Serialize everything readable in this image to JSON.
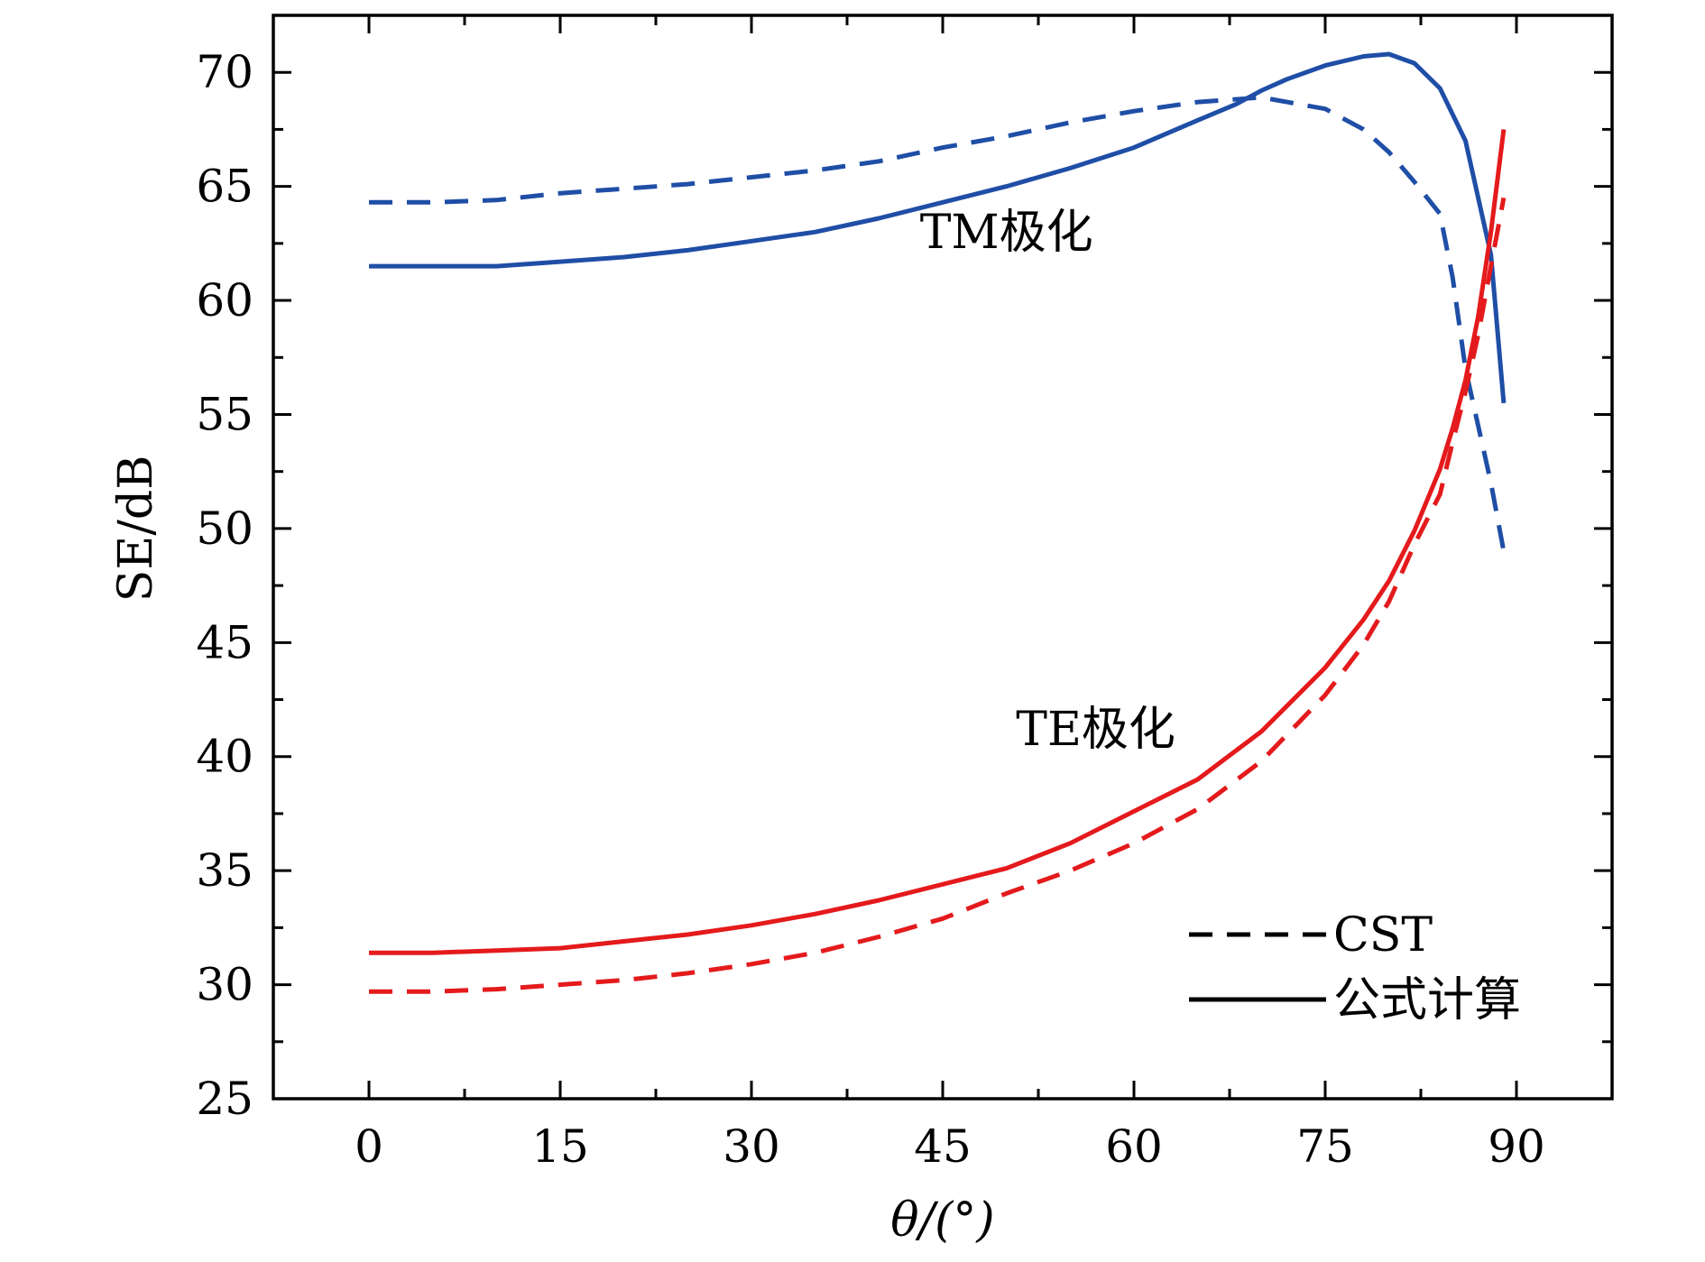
{
  "chart_data": {
    "type": "line",
    "xlabel": "θ/(°)",
    "ylabel": "SE/dB",
    "xlim": [
      -7.5,
      97.5
    ],
    "ylim": [
      25,
      72.5
    ],
    "xticks": [
      0,
      15,
      30,
      45,
      60,
      75,
      90
    ],
    "yticks": [
      25,
      30,
      35,
      40,
      45,
      50,
      55,
      60,
      65,
      70
    ],
    "x_minor_step": 7.5,
    "y_minor_step": 2.5,
    "grid": false,
    "legend": {
      "position": "bottom-right",
      "items": [
        {
          "label": "CST",
          "style": "dashed"
        },
        {
          "label": "公式计算",
          "style": "solid"
        }
      ]
    },
    "annotations": [
      {
        "text": "TM极化",
        "x": 50,
        "y": 62.3,
        "color": "#000000"
      },
      {
        "text": "TE极化",
        "x": 57,
        "y": 40.5,
        "color": "#000000"
      }
    ],
    "colors": {
      "tm": "#1f4ea6",
      "te": "#e41a1c"
    },
    "series": [
      {
        "style": "solid",
        "color": "#1f4ea6",
        "group": "TM",
        "x": [
          0,
          5,
          10,
          15,
          20,
          25,
          30,
          35,
          40,
          45,
          50,
          55,
          60,
          65,
          68,
          70,
          72,
          75,
          78,
          80,
          82,
          84,
          86,
          88,
          89
        ],
        "y": [
          61.5,
          61.5,
          61.5,
          61.7,
          61.9,
          62.2,
          62.6,
          63.0,
          63.6,
          64.3,
          65.0,
          65.8,
          66.7,
          67.9,
          68.6,
          69.2,
          69.7,
          70.3,
          70.7,
          70.8,
          70.4,
          69.3,
          67.0,
          62.0,
          55.5
        ]
      },
      {
        "style": "dashed",
        "color": "#1f4ea6",
        "group": "TM",
        "x": [
          0,
          5,
          10,
          15,
          20,
          25,
          30,
          35,
          40,
          45,
          50,
          55,
          60,
          65,
          70,
          72,
          75,
          78,
          80,
          82,
          84,
          85,
          86,
          87,
          88,
          89
        ],
        "y": [
          64.3,
          64.3,
          64.4,
          64.7,
          64.9,
          65.1,
          65.4,
          65.7,
          66.1,
          66.7,
          67.2,
          67.8,
          68.3,
          68.7,
          68.9,
          68.7,
          68.4,
          67.5,
          66.5,
          65.2,
          63.8,
          61.0,
          57.0,
          54.5,
          52.0,
          49.0
        ]
      },
      {
        "style": "solid",
        "color": "#e41a1c",
        "group": "TE",
        "x": [
          0,
          5,
          10,
          15,
          20,
          25,
          30,
          35,
          40,
          45,
          50,
          55,
          60,
          65,
          70,
          75,
          78,
          80,
          82,
          84,
          85,
          86,
          87,
          88,
          89
        ],
        "y": [
          31.4,
          31.4,
          31.5,
          31.6,
          31.9,
          32.2,
          32.6,
          33.1,
          33.7,
          34.4,
          35.1,
          36.2,
          37.6,
          39.0,
          41.1,
          43.9,
          46.0,
          47.7,
          49.9,
          52.6,
          54.4,
          56.5,
          59.3,
          63.0,
          67.5
        ]
      },
      {
        "style": "dashed",
        "color": "#e41a1c",
        "group": "TE",
        "x": [
          0,
          5,
          10,
          15,
          20,
          25,
          30,
          35,
          40,
          45,
          50,
          55,
          60,
          65,
          70,
          75,
          78,
          80,
          82,
          84,
          85,
          86,
          87,
          88,
          89
        ],
        "y": [
          29.7,
          29.7,
          29.8,
          30.0,
          30.2,
          30.5,
          30.9,
          31.4,
          32.1,
          32.9,
          34.0,
          35.0,
          36.2,
          37.7,
          39.8,
          42.7,
          44.9,
          46.8,
          49.3,
          51.5,
          53.8,
          56.0,
          58.5,
          61.5,
          64.5
        ]
      }
    ]
  }
}
